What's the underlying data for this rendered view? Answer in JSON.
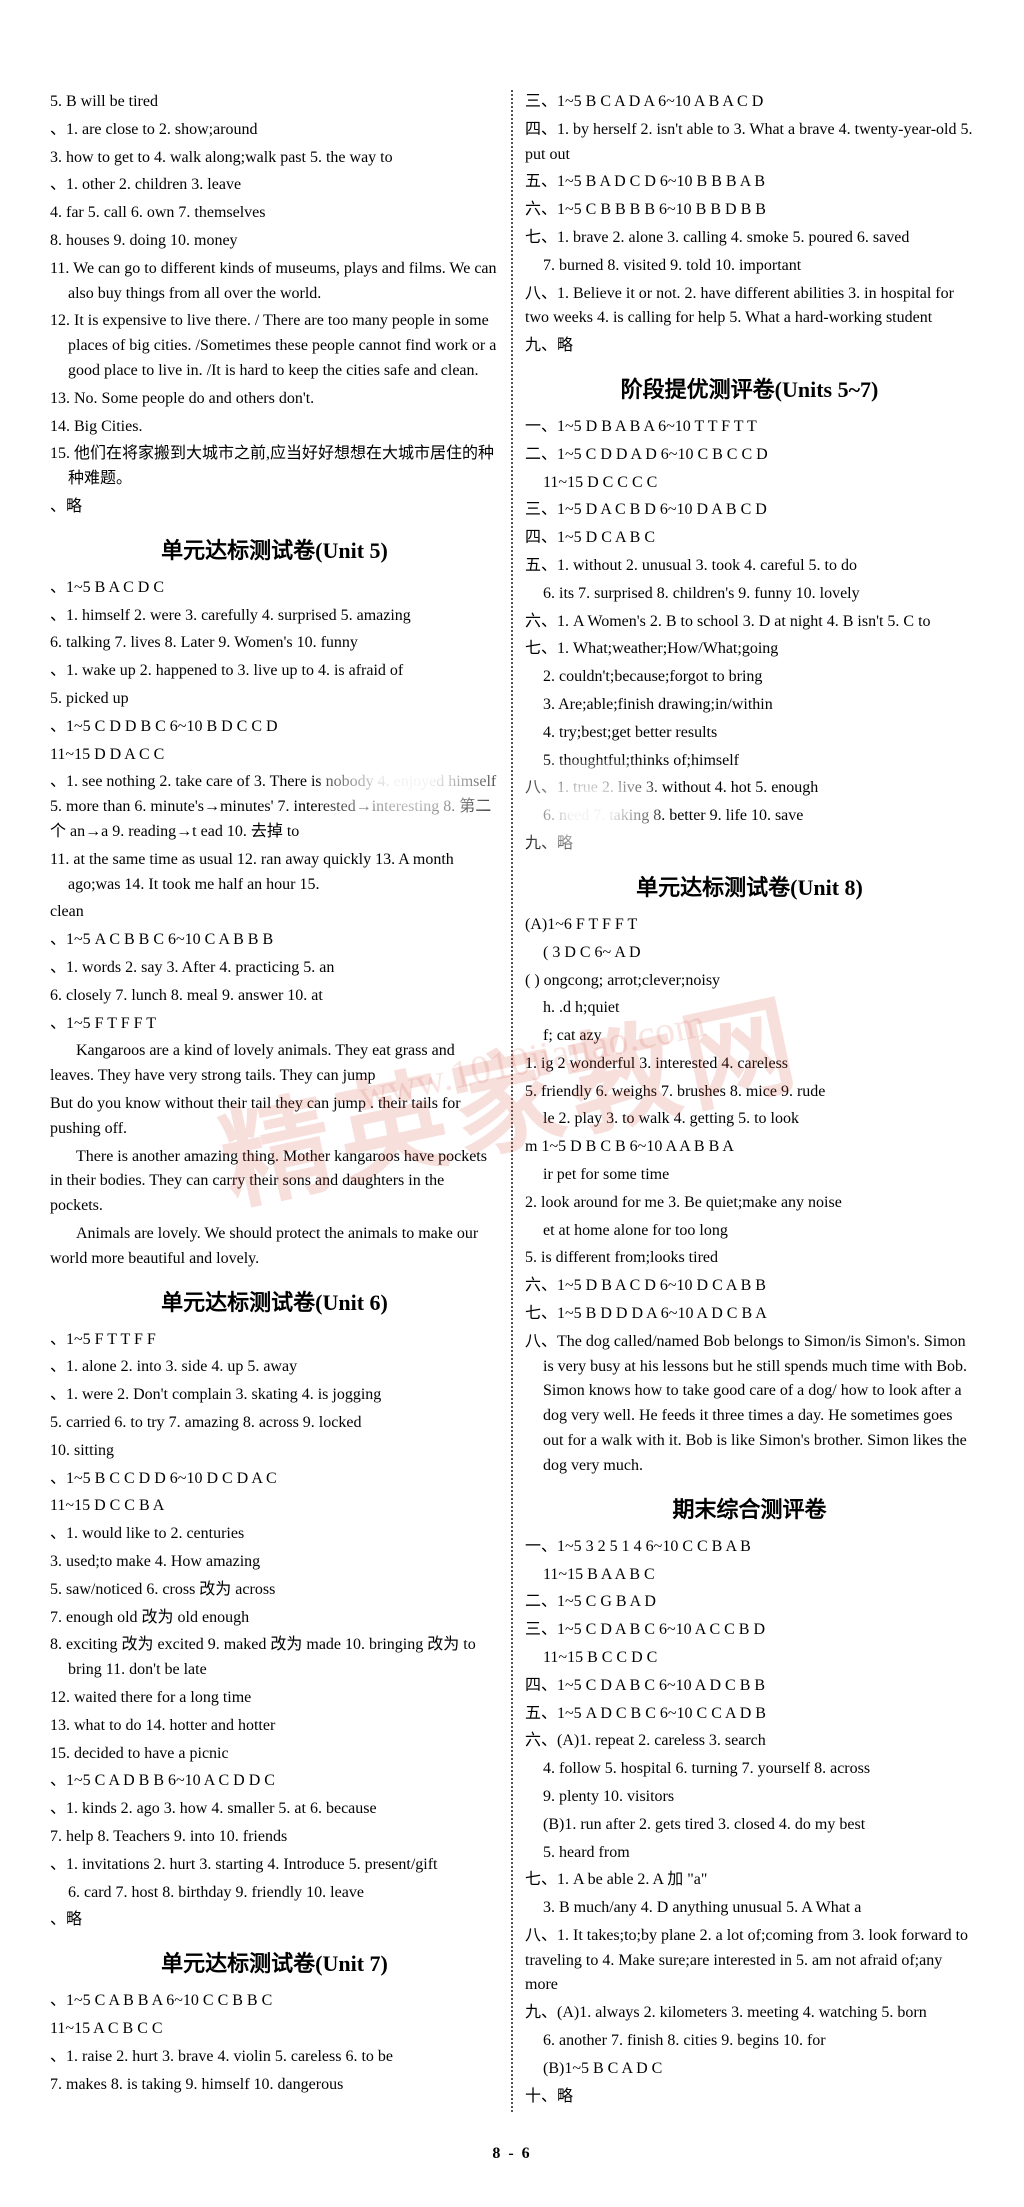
{
  "watermark_text": "精英家教网",
  "watermark_url": "www.1010jiajiao.com",
  "watermark_color": "rgba(210, 80, 60, 0.18)",
  "page_number": "8 - 6",
  "left_col": {
    "pre_unit5": [
      "5. B   will be tired",
      "、1. are close to  2. show;around",
      "3. how to get to  4. walk along;walk past  5. the way to",
      "、1. other  2. children  3. leave",
      "4. far  5. call  6. own  7. themselves",
      "8. houses  9. doing  10. money",
      "11. We can go to different kinds of museums, plays and films. We can also buy things from all over the world.",
      "12. It is expensive to live there. / There are too many people in some places of big cities. /Sometimes these people cannot find work or a good place to live in. /It is hard to keep the cities safe and clean.",
      "13. No. Some people do and others don't.",
      "14. Big Cities.",
      "15. 他们在将家搬到大城市之前,应当好好想想在大城市居住的种种难题。",
      "、略"
    ],
    "unit5_title": "单元达标测试卷(Unit 5)",
    "unit5": [
      "、1~5  B A C D C",
      "、1. himself  2. were  3. carefully  4. surprised  5. amazing",
      "6. talking  7. lives  8. Later  9. Women's  10. funny",
      "、1. wake up  2. happened to  3. live up to  4. is afraid of",
      "5. picked up",
      "、1~5  C D D B C  6~10  B D C C D",
      "11~15  D D A C C",
      "、1. see nothing  2. take care of  3. There is nobody  4. enjoyed himself  5. more than  6. minute's→minutes'  7. interested→interesting  8. 第二个 an→a  9. reading→t  ead  10. 去掉 to",
      "11. at the same time as usual  12. ran away quickly  13. A month ago;was  14. It took me half an hour  15.",
      "clean",
      "、1~5  A C B B C  6~10  C A B B B",
      "、1. words  2. say  3. After  4. practicing  5. an",
      "6. closely  7. lunch  8. meal  9. answer  10. at",
      "、1~5  F T F F T"
    ],
    "unit5_para": [
      "Kangaroos are a kind of lovely animals. They eat grass and leaves. They have very strong tails. They can jump",
      "But do you know without their tail they can jump     .         their tails for pushing off.",
      "There is another amazing thing. Mother kangaroos have pockets in their bodies. They can carry their sons and daughters in the pockets.",
      "Animals are lovely. We should protect the animals to make our world more beautiful and lovely."
    ],
    "unit6_title": "单元达标测试卷(Unit 6)",
    "unit6": [
      "、1~5  F T T F F",
      "、1. alone  2. into  3. side  4. up  5. away",
      "、1. were  2. Don't complain  3. skating  4. is jogging",
      "5. carried  6. to try  7. amazing  8. across  9. locked",
      "10. sitting",
      "、1~5  B C C D D  6~10  D C D A C",
      "11~15 D C C B A",
      "、1. would like to  2. centuries",
      "3. used;to make  4. How amazing",
      "5. saw/noticed  6. cross 改为 across",
      "7. enough old 改为 old enough",
      "8. exciting 改为 excited  9. maked 改为 made  10. bringing 改为 to bring  11. don't be late",
      "12. waited there for a long time",
      "13. what to do  14. hotter and hotter",
      "15. decided to have a picnic",
      "、1~5  C A D B B  6~10  A C D D C",
      "、1. kinds  2. ago  3. how  4. smaller  5. at  6. because",
      "7. help  8. Teachers  9. into  10. friends",
      "、1. invitations  2. hurt  3. starting  4. Introduce  5. present/gift",
      "6. card  7. host  8. birthday  9. friendly  10. leave",
      "、略"
    ],
    "unit7_title": "单元达标测试卷(Unit 7)",
    "unit7": [
      "、1~5  C A B B A  6~10  C C B B C",
      "11~15  A C B C C",
      "、1. raise  2. hurt  3. brave  4. violin  5. careless  6. to be",
      "7. makes  8. is taking  9. himself  10. dangerous"
    ]
  },
  "right_col": {
    "unit7_cont": [
      "三、1~5  B C A D A  6~10  A B A C D",
      "四、1. by herself  2. isn't able to  3. What a brave  4. twenty-year-old  5. put out",
      "五、1~5  B A D C D  6~10  B B B A B",
      "六、1~5  C B B B B  6~10  B B D B B",
      "七、1. brave  2. alone  3. calling  4. smoke  5. poured  6. saved",
      "7. burned  8. visited  9. told  10. important",
      "八、1. Believe it or not.  2. have different abilities  3. in hospital for two weeks  4. is calling for help  5. What a hard-working student",
      "九、略"
    ],
    "stage_title": "阶段提优测评卷(Units 5~7)",
    "stage": [
      "一、1~5  D B A B A  6~10  T T F T T",
      "二、1~5  C D D A D  6~10  C B C C D",
      "11~15  D C C C C",
      "三、1~5  D A C B D  6~10  D A B C D",
      "四、1~5  D C A B C",
      "五、1. without  2. unusual  3. took  4. careful  5. to do",
      "6. its  7. surprised  8. children's  9. funny  10. lovely",
      "六、1. A Women's  2. B to school  3. D at night  4. B isn't  5. C to",
      "七、1. What;weather;How/What;going",
      "2. couldn't;because;forgot to bring",
      "3. Are;able;finish drawing;in/within",
      "4. try;best;get better results",
      "5. thoughtful;thinks of;himself",
      "八、1. true  2. live  3. without  4. hot  5. enough",
      "6. need  7. taking  8. better  9. life  10. save",
      "九、略"
    ],
    "unit8_title": "单元达标测试卷(Unit 8)",
    "unit8": [
      "(A)1~6  F T  F F T",
      "( 3 D C  6~   A D",
      "( ) ongcong;   arrot;clever;noisy",
      "h.  .d  h;quiet",
      "f;  cat   azy",
      "1.       ig  2  wonderful  3. interested  4. careless",
      "5. friendly  6. weighs  7. brushes  8. mice  9. rude",
      "",
      "       le  2. play  3. to walk  4. getting  5. to look",
      "m  1~5  D B C  B  6~10  A A B B A",
      "        ir pet for some time",
      "2. look around for me  3. Be quiet;make any noise",
      "       et at home alone for too long",
      "5. is different from;looks tired",
      "六、1~5  D B A C D  6~10  D C A B B",
      "七、1~5  B D D D A  6~10  A D C B A"
    ],
    "unit8_para": "八、The dog called/named Bob belongs to Simon/is Simon's. Simon is very busy at his lessons but he still spends much time with Bob. Simon knows how to take good care of a dog/ how to look after a dog very well. He feeds it three times a day. He sometimes goes out for a walk with it. Bob is like Simon's brother. Simon likes the dog very much.",
    "final_title": "期末综合测评卷",
    "final": [
      "一、1~5  3 2 5 1 4  6~10  C C B A B",
      "11~15  B A A B C",
      "二、1~5  C G B A D",
      "三、1~5  C D A B C  6~10  A C C B D",
      "11~15  B C C D C",
      "四、1~5  C D A B C  6~10  A D C B B",
      "五、1~5  A D C B C  6~10  C C A D B",
      "六、(A)1. repeat  2. careless  3. search",
      "4. follow  5. hospital  6. turning  7. yourself  8. across",
      "9. plenty  10. visitors",
      "(B)1. run after  2. gets tired  3. closed  4. do my best",
      "5. heard from",
      "七、1. A  be able  2. A  加 \"a\"",
      "3. B  much/any  4. D  anything unusual  5. A  What a",
      "八、1. It takes;to;by plane  2. a lot of;coming from  3. look forward to traveling to  4. Make sure;are interested in  5. am not afraid of;any more",
      "九、(A)1. always  2. kilometers  3. meeting  4. watching  5. born",
      "6. another  7. finish  8. cities  9. begins  10. for",
      "(B)1~5  B C A D C",
      "十、略"
    ]
  }
}
